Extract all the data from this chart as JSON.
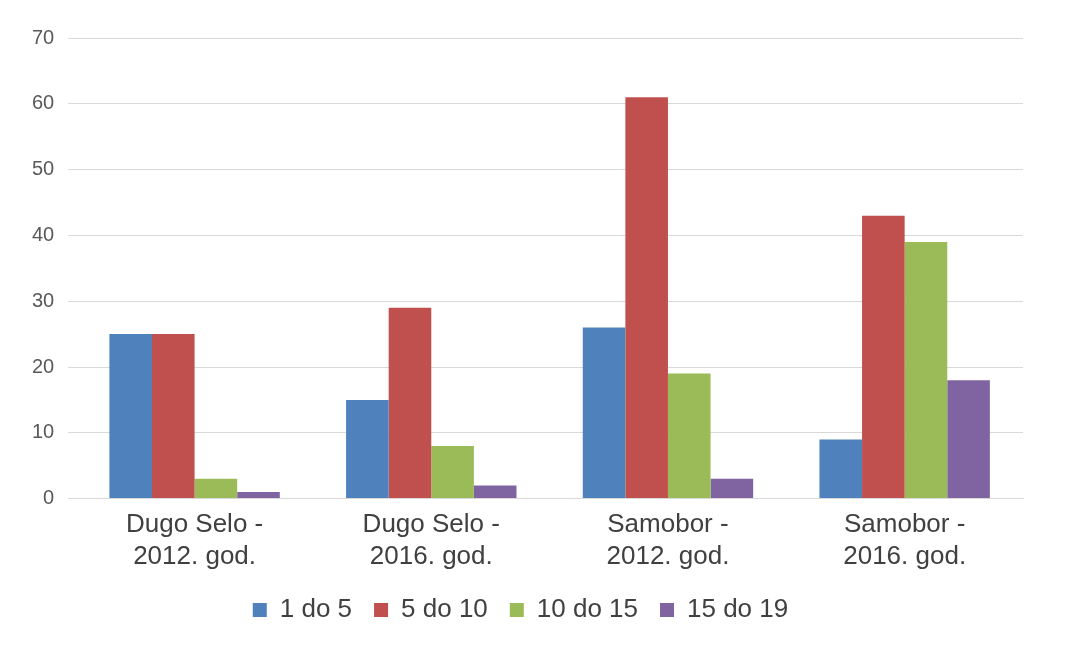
{
  "chart_data": {
    "type": "bar",
    "categories": [
      "Dugo Selo - 2012. god.",
      "Dugo Selo - 2016. god.",
      "Samobor - 2012. god.",
      "Samobor - 2016. god."
    ],
    "series": [
      {
        "name": "1 do 5",
        "color": "#4f81bd",
        "values": [
          25,
          15,
          26,
          9
        ]
      },
      {
        "name": "5 do 10",
        "color": "#c0504d",
        "values": [
          25,
          29,
          61,
          43
        ]
      },
      {
        "name": "10 do 15",
        "color": "#9bbb59",
        "values": [
          3,
          8,
          19,
          39
        ]
      },
      {
        "name": "15 do 19",
        "color": "#8064a2",
        "values": [
          1,
          2,
          3,
          18
        ]
      }
    ],
    "ylim": [
      0,
      70
    ],
    "yticks": [
      0,
      10,
      20,
      30,
      40,
      50,
      60,
      70
    ],
    "grid": "y",
    "legend": "bottom"
  }
}
